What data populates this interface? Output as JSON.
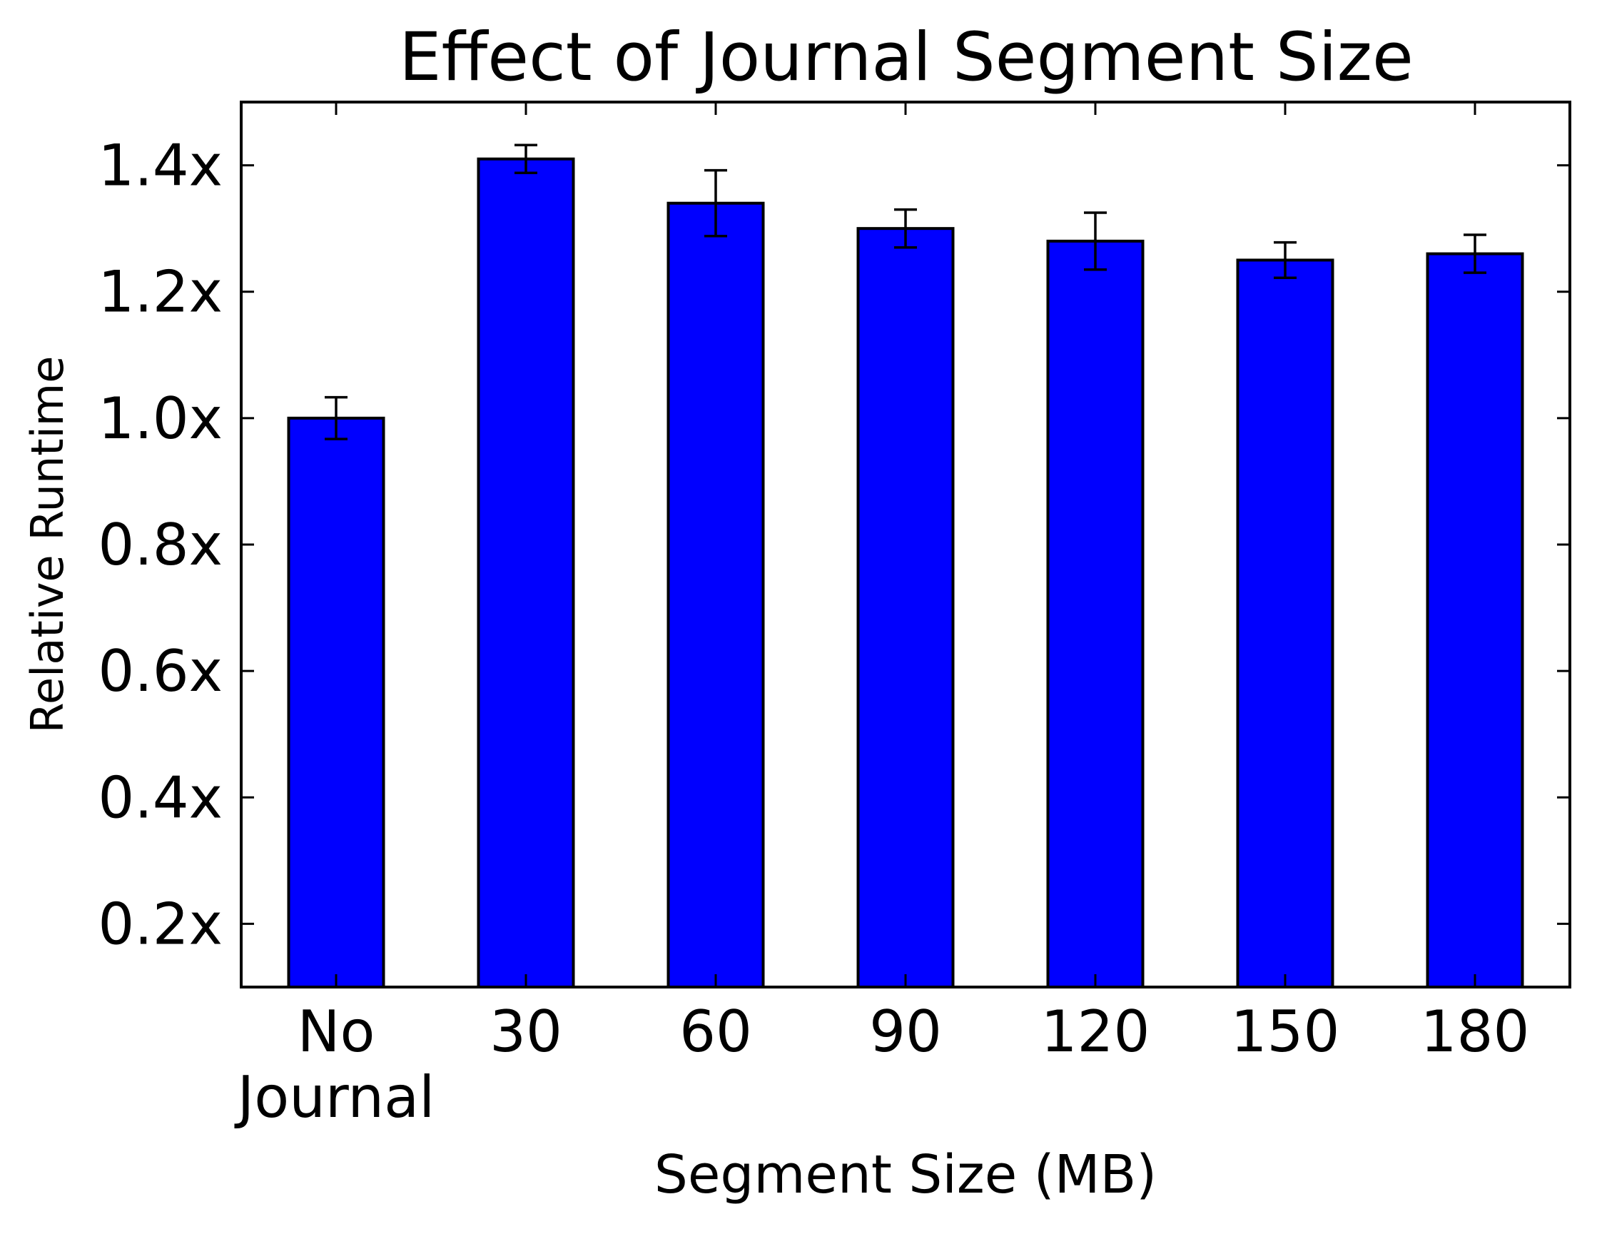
{
  "chart_data": {
    "type": "bar",
    "title": "Effect of Journal Segment Size",
    "xlabel": "Segment Size (MB)",
    "ylabel": "Relative Runtime",
    "categories": [
      [
        "No",
        "Journal"
      ],
      [
        "30"
      ],
      [
        "60"
      ],
      [
        "90"
      ],
      [
        "120"
      ],
      [
        "150"
      ],
      [
        "180"
      ]
    ],
    "values": [
      1.0,
      1.41,
      1.34,
      1.3,
      1.28,
      1.25,
      1.26
    ],
    "errors": [
      0.033,
      0.022,
      0.052,
      0.03,
      0.045,
      0.028,
      0.03
    ],
    "ylim": [
      0.1,
      1.5
    ],
    "yticks": [
      0.2,
      0.4,
      0.6,
      0.8,
      1.0,
      1.2,
      1.4
    ],
    "ytick_labels": [
      "0.2x",
      "0.4x",
      "0.6x",
      "0.8x",
      "1.0x",
      "1.2x",
      "1.4x"
    ],
    "bar_color": "#0000ff",
    "edge_color": "#000000",
    "grid": false,
    "legend": "none"
  }
}
